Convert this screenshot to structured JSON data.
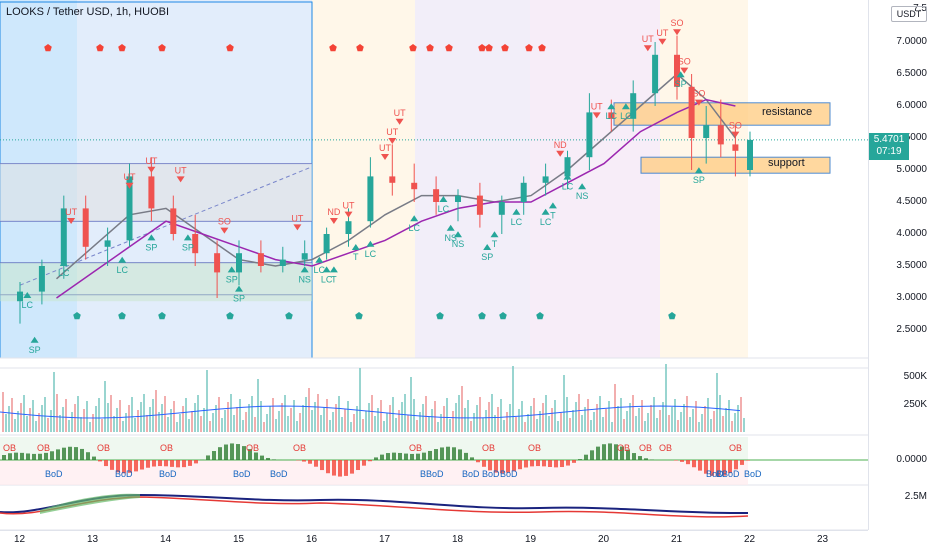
{
  "header": {
    "symbol_title": "LOOKS / Tether USD, 1h, HUOBI",
    "currency": "USDT"
  },
  "price_axis": {
    "labels": [
      "7.5",
      "7.0000",
      "6.5000",
      "6.0000",
      "5.5000",
      "5.0000",
      "4.5000",
      "4.0000",
      "3.5000",
      "3.0000",
      "2.5000"
    ],
    "last_price": "5.4701",
    "countdown": "07:19"
  },
  "volume_axis": {
    "labels": [
      "500K",
      "250K"
    ]
  },
  "oscillator_axis": {
    "labels": [
      "0.0000"
    ]
  },
  "obv_axis": {
    "labels": [
      "2.5M"
    ]
  },
  "time_axis": {
    "labels": [
      "12",
      "13",
      "14",
      "15",
      "16",
      "17",
      "18",
      "19",
      "20",
      "21",
      "22",
      "23"
    ]
  },
  "zones": {
    "resistance_label": "resistance",
    "support_label": "support"
  },
  "signal_labels": {
    "ut": "UT",
    "so": "SO",
    "sp": "SP",
    "lc": "LC",
    "nd": "ND",
    "ns": "NS",
    "t": "T",
    "ob": "OB",
    "bod": "BoD",
    "bbod": "BBoD"
  },
  "chart_data": {
    "type": "candlestick",
    "title": "LOOKS / Tether USD, 1h, HUOBI",
    "y_axis": {
      "unit": "USDT",
      "range": [
        2.2,
        7.5
      ],
      "ticks": [
        2.5,
        3.0,
        3.5,
        4.0,
        4.5,
        5.0,
        5.5,
        6.0,
        6.5,
        7.0,
        7.5
      ]
    },
    "x_axis": {
      "unit": "day",
      "ticks": [
        "12",
        "13",
        "14",
        "15",
        "16",
        "17",
        "18",
        "19",
        "20",
        "21",
        "22",
        "23"
      ]
    },
    "last_price": 5.4701,
    "series": [
      {
        "name": "",
        "values": [
          [
            12.0,
            2.95,
            3.25,
            2.6,
            3.1
          ],
          [
            12.3,
            3.1,
            3.6,
            2.9,
            3.5
          ],
          [
            12.6,
            3.5,
            4.6,
            3.3,
            4.4
          ],
          [
            12.9,
            4.4,
            4.6,
            3.6,
            3.8
          ],
          [
            13.2,
            3.8,
            4.1,
            3.5,
            3.9
          ],
          [
            13.5,
            3.9,
            5.1,
            3.8,
            4.9
          ],
          [
            13.8,
            4.9,
            5.2,
            4.2,
            4.4
          ],
          [
            14.1,
            4.4,
            4.6,
            3.9,
            4.0
          ],
          [
            14.4,
            4.0,
            4.3,
            3.5,
            3.7
          ],
          [
            14.7,
            3.7,
            3.9,
            3.0,
            3.4
          ],
          [
            15.0,
            3.4,
            3.9,
            3.2,
            3.7
          ],
          [
            15.3,
            3.7,
            3.9,
            3.4,
            3.5
          ],
          [
            15.6,
            3.5,
            3.8,
            3.4,
            3.6
          ],
          [
            15.9,
            3.6,
            3.9,
            3.5,
            3.7
          ],
          [
            16.2,
            3.7,
            4.1,
            3.6,
            4.0
          ],
          [
            16.5,
            4.0,
            4.4,
            3.8,
            4.2
          ],
          [
            16.8,
            4.2,
            5.2,
            4.1,
            4.9
          ],
          [
            17.1,
            4.9,
            5.4,
            4.6,
            4.8
          ],
          [
            17.4,
            4.8,
            5.1,
            4.5,
            4.7
          ],
          [
            17.7,
            4.7,
            4.9,
            4.3,
            4.5
          ],
          [
            18.0,
            4.5,
            4.7,
            4.2,
            4.6
          ],
          [
            18.3,
            4.6,
            4.8,
            4.1,
            4.3
          ],
          [
            18.6,
            4.3,
            4.6,
            4.0,
            4.5
          ],
          [
            18.9,
            4.5,
            4.9,
            4.3,
            4.8
          ],
          [
            19.2,
            4.8,
            5.1,
            4.6,
            4.9
          ],
          [
            19.5,
            4.9,
            5.3,
            4.7,
            5.2
          ],
          [
            19.8,
            5.2,
            6.2,
            5.0,
            5.9
          ],
          [
            20.1,
            5.9,
            6.1,
            5.6,
            5.8
          ],
          [
            20.4,
            5.8,
            6.4,
            5.6,
            6.2
          ],
          [
            20.7,
            6.2,
            7.0,
            6.0,
            6.8
          ],
          [
            21.0,
            6.8,
            7.1,
            6.1,
            6.3
          ],
          [
            21.2,
            6.3,
            6.5,
            5.0,
            5.5
          ],
          [
            21.4,
            5.5,
            6.0,
            5.1,
            5.7
          ],
          [
            21.6,
            5.7,
            6.1,
            5.2,
            5.4
          ],
          [
            21.8,
            5.4,
            5.7,
            4.9,
            5.3
          ],
          [
            22.0,
            5.0,
            5.6,
            4.9,
            5.47
          ]
        ]
      }
    ],
    "moving_averages": [
      {
        "name": "",
        "color": "#787b86",
        "values": [
          [
            12.5,
            3.3
          ],
          [
            13.0,
            3.8
          ],
          [
            13.5,
            4.3
          ],
          [
            14.0,
            4.4
          ],
          [
            14.5,
            4.0
          ],
          [
            15.0,
            3.6
          ],
          [
            15.5,
            3.5
          ],
          [
            16.0,
            3.6
          ],
          [
            16.5,
            3.9
          ],
          [
            17.0,
            4.3
          ],
          [
            17.5,
            4.6
          ],
          [
            18.0,
            4.6
          ],
          [
            18.5,
            4.5
          ],
          [
            19.0,
            4.6
          ],
          [
            19.5,
            5.0
          ],
          [
            20.0,
            5.5
          ],
          [
            20.5,
            6.0
          ],
          [
            21.0,
            6.5
          ],
          [
            21.4,
            6.1
          ],
          [
            21.8,
            5.5
          ]
        ]
      },
      {
        "name": "",
        "color": "#9c27b0",
        "values": [
          [
            12.5,
            3.0
          ],
          [
            13.0,
            3.4
          ],
          [
            13.5,
            3.8
          ],
          [
            14.0,
            4.2
          ],
          [
            14.5,
            4.0
          ],
          [
            15.0,
            3.8
          ],
          [
            15.5,
            3.6
          ],
          [
            16.0,
            3.5
          ],
          [
            16.5,
            3.7
          ],
          [
            17.0,
            3.9
          ],
          [
            17.5,
            4.2
          ],
          [
            18.0,
            4.4
          ],
          [
            18.5,
            4.5
          ],
          [
            19.0,
            4.5
          ],
          [
            19.5,
            4.8
          ],
          [
            20.0,
            5.1
          ],
          [
            20.5,
            5.6
          ],
          [
            21.0,
            5.9
          ],
          [
            21.4,
            6.1
          ],
          [
            21.8,
            6.0
          ]
        ]
      }
    ],
    "zones": [
      {
        "label": "resistance",
        "range": [
          5.7,
          6.05
        ]
      },
      {
        "label": "support",
        "range": [
          4.95,
          5.2
        ]
      }
    ],
    "horizontal_levels": [
      5.1,
      4.2,
      3.55,
      3.05
    ],
    "trendline": [
      [
        12.0,
        3.2
      ],
      [
        16.0,
        5.05
      ]
    ],
    "signals": [
      {
        "x": 12.1,
        "y": 3.0,
        "label": "LC"
      },
      {
        "x": 12.2,
        "y": 2.3,
        "label": "SP"
      },
      {
        "x": 12.6,
        "y": 3.5,
        "label": "LC"
      },
      {
        "x": 12.7,
        "y": 4.25,
        "label": "UT"
      },
      {
        "x": 13.4,
        "y": 3.55,
        "label": "LC"
      },
      {
        "x": 13.5,
        "y": 4.8,
        "label": "UT"
      },
      {
        "x": 13.8,
        "y": 5.05,
        "label": "UT"
      },
      {
        "x": 13.8,
        "y": 3.9,
        "label": "SP"
      },
      {
        "x": 14.2,
        "y": 4.9,
        "label": "UT"
      },
      {
        "x": 14.3,
        "y": 3.9,
        "label": "SP"
      },
      {
        "x": 14.8,
        "y": 4.1,
        "label": "SO"
      },
      {
        "x": 14.9,
        "y": 3.4,
        "label": "SP"
      },
      {
        "x": 15.0,
        "y": 3.1,
        "label": "SP"
      },
      {
        "x": 15.9,
        "y": 3.4,
        "label": "NS"
      },
      {
        "x": 15.8,
        "y": 4.15,
        "label": "UT"
      },
      {
        "x": 16.1,
        "y": 3.55,
        "label": "LC"
      },
      {
        "x": 16.2,
        "y": 3.4,
        "label": "LC"
      },
      {
        "x": 16.3,
        "y": 3.4,
        "label": "T"
      },
      {
        "x": 16.3,
        "y": 4.25,
        "label": "ND"
      },
      {
        "x": 16.5,
        "y": 4.35,
        "label": "UT"
      },
      {
        "x": 16.6,
        "y": 3.75,
        "label": "T"
      },
      {
        "x": 16.8,
        "y": 3.8,
        "label": "LC"
      },
      {
        "x": 17.0,
        "y": 5.25,
        "label": "UT"
      },
      {
        "x": 17.1,
        "y": 5.5,
        "label": "UT"
      },
      {
        "x": 17.2,
        "y": 5.8,
        "label": "UT"
      },
      {
        "x": 17.4,
        "y": 4.2,
        "label": "LC"
      },
      {
        "x": 17.8,
        "y": 4.5,
        "label": "LC"
      },
      {
        "x": 17.9,
        "y": 4.05,
        "label": "NS"
      },
      {
        "x": 18.0,
        "y": 3.95,
        "label": "NS"
      },
      {
        "x": 18.4,
        "y": 3.75,
        "label": "SP"
      },
      {
        "x": 18.5,
        "y": 3.95,
        "label": "T"
      },
      {
        "x": 18.8,
        "y": 4.3,
        "label": "LC"
      },
      {
        "x": 19.2,
        "y": 4.3,
        "label": "LC"
      },
      {
        "x": 19.3,
        "y": 4.4,
        "label": "T"
      },
      {
        "x": 19.4,
        "y": 5.3,
        "label": "ND"
      },
      {
        "x": 19.5,
        "y": 4.85,
        "label": "LC"
      },
      {
        "x": 19.7,
        "y": 4.7,
        "label": "NS"
      },
      {
        "x": 19.9,
        "y": 5.9,
        "label": "UT"
      },
      {
        "x": 20.1,
        "y": 5.95,
        "label": "LC"
      },
      {
        "x": 20.3,
        "y": 5.95,
        "label": "LC"
      },
      {
        "x": 20.6,
        "y": 6.95,
        "label": "UT"
      },
      {
        "x": 20.8,
        "y": 7.05,
        "label": "UT"
      },
      {
        "x": 21.0,
        "y": 7.2,
        "label": "SO"
      },
      {
        "x": 21.1,
        "y": 6.6,
        "label": "SO"
      },
      {
        "x": 21.05,
        "y": 6.45,
        "label": "SP"
      },
      {
        "x": 21.3,
        "y": 6.1,
        "label": "SO"
      },
      {
        "x": 21.3,
        "y": 4.95,
        "label": "SP"
      },
      {
        "x": 21.8,
        "y": 5.6,
        "label": "SO"
      }
    ]
  }
}
